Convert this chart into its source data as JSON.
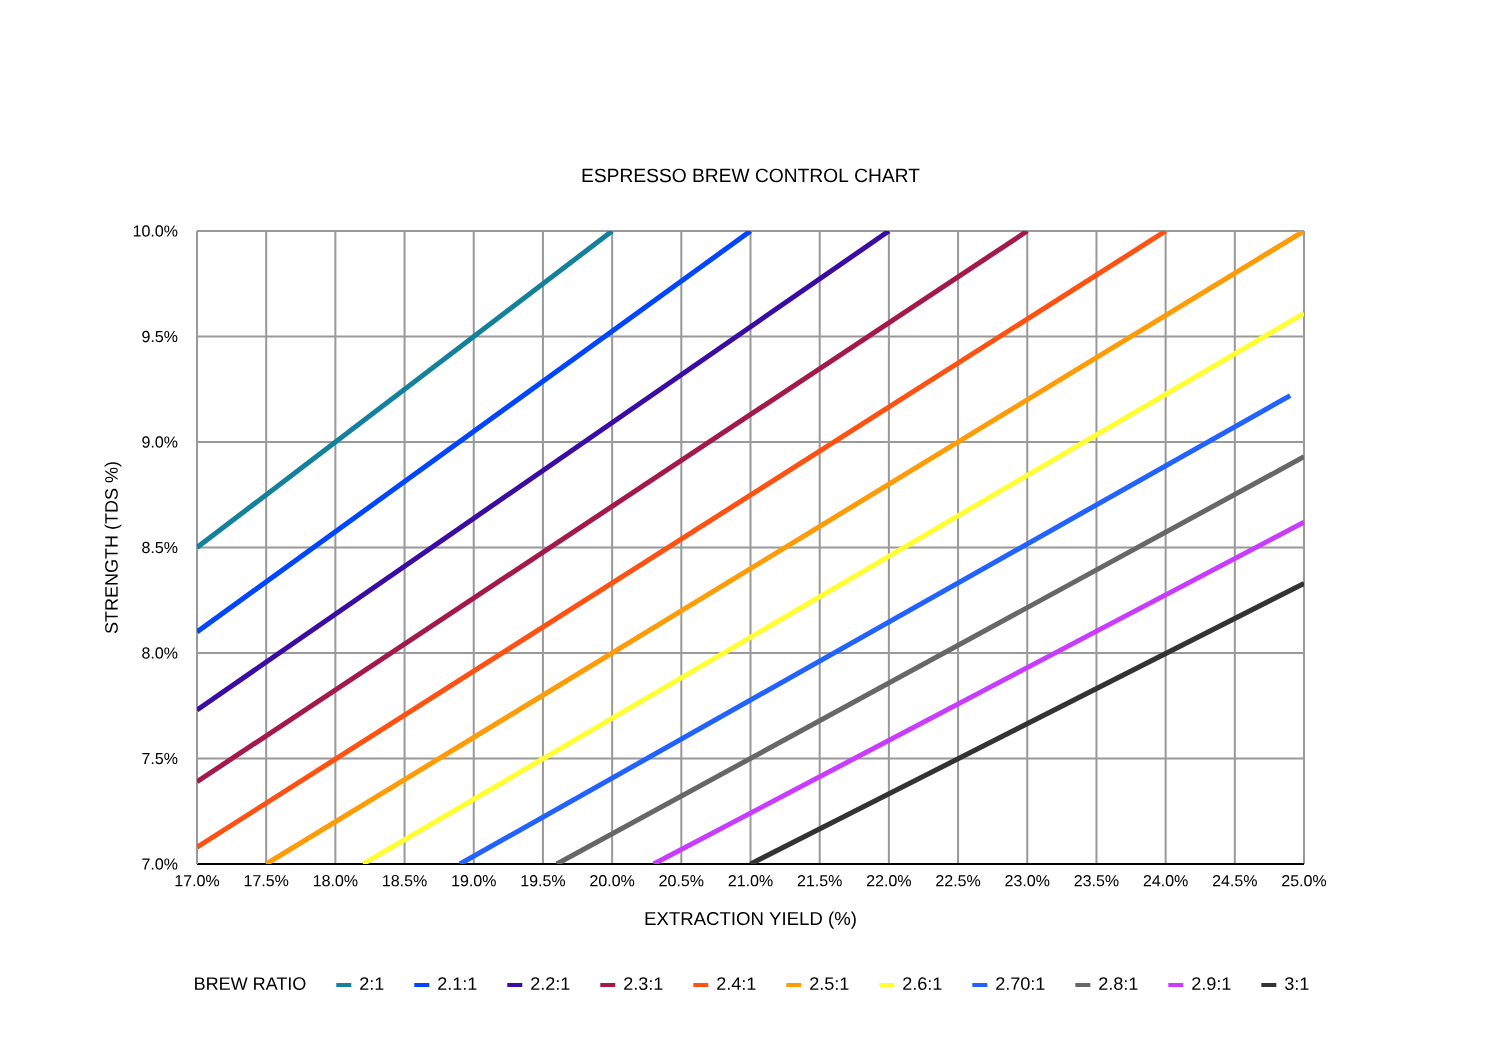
{
  "chart_data": {
    "type": "line",
    "title": "ESPRESSO BREW CONTROL CHART",
    "xlabel": "EXTRACTION YIELD (%)",
    "ylabel": "STRENGTH (TDS %)",
    "legend_title": "BREW RATIO",
    "xlim": [
      17.0,
      25.0
    ],
    "ylim": [
      7.0,
      10.0
    ],
    "xticks": [
      {
        "value": 17.0,
        "label": "17.0%"
      },
      {
        "value": 17.5,
        "label": "17.5%"
      },
      {
        "value": 18.0,
        "label": "18.0%"
      },
      {
        "value": 18.5,
        "label": "18.5%"
      },
      {
        "value": 19.0,
        "label": "19.0%"
      },
      {
        "value": 19.5,
        "label": "19.5%"
      },
      {
        "value": 20.0,
        "label": "20.0%"
      },
      {
        "value": 20.5,
        "label": "20.5%"
      },
      {
        "value": 21.0,
        "label": "21.0%"
      },
      {
        "value": 21.5,
        "label": "21.5%"
      },
      {
        "value": 22.0,
        "label": "22.0%"
      },
      {
        "value": 22.5,
        "label": "22.5%"
      },
      {
        "value": 23.0,
        "label": "23.0%"
      },
      {
        "value": 23.5,
        "label": "23.5%"
      },
      {
        "value": 24.0,
        "label": "24.0%"
      },
      {
        "value": 24.5,
        "label": "24.5%"
      },
      {
        "value": 25.0,
        "label": "25.0%"
      }
    ],
    "yticks": [
      {
        "value": 7.0,
        "label": "7.0%"
      },
      {
        "value": 7.5,
        "label": "7.5%"
      },
      {
        "value": 8.0,
        "label": "8.0%"
      },
      {
        "value": 8.5,
        "label": "8.5%"
      },
      {
        "value": 9.0,
        "label": "9.0%"
      },
      {
        "value": 9.5,
        "label": "9.5%"
      },
      {
        "value": 10.0,
        "label": "10.0%"
      }
    ],
    "grid": true,
    "legend": "bottom",
    "series": [
      {
        "name": "2:1",
        "color": "#13809c",
        "x": [
          17.0,
          20.0
        ],
        "values": [
          8.5,
          10.0
        ]
      },
      {
        "name": "2.1:1",
        "color": "#0046ff",
        "x": [
          17.0,
          21.0
        ],
        "values": [
          8.1,
          10.0
        ]
      },
      {
        "name": "2.2:1",
        "color": "#3a0ca3",
        "x": [
          17.0,
          22.0
        ],
        "values": [
          7.73,
          10.0
        ]
      },
      {
        "name": "2.3:1",
        "color": "#a3194b",
        "x": [
          17.0,
          23.0
        ],
        "values": [
          7.39,
          10.0
        ]
      },
      {
        "name": "2.4:1",
        "color": "#ff5212",
        "x": [
          17.0,
          24.0
        ],
        "values": [
          7.08,
          10.0
        ]
      },
      {
        "name": "2.5:1",
        "color": "#ff9b05",
        "x": [
          17.5,
          25.0
        ],
        "values": [
          7.0,
          10.0
        ]
      },
      {
        "name": "2.6:1",
        "color": "#ffff33",
        "x": [
          18.2,
          25.0
        ],
        "values": [
          7.0,
          9.61
        ]
      },
      {
        "name": "2.70:1",
        "color": "#2262ff",
        "x": [
          18.9,
          24.9
        ],
        "values": [
          7.0,
          9.22
        ]
      },
      {
        "name": "2.8:1",
        "color": "#676767",
        "x": [
          19.6,
          25.0
        ],
        "values": [
          7.0,
          8.93
        ]
      },
      {
        "name": "2.9:1",
        "color": "#c93cff",
        "x": [
          20.3,
          25.0
        ],
        "values": [
          7.0,
          8.62
        ]
      },
      {
        "name": "3:1",
        "color": "#333333",
        "x": [
          21.0,
          25.0
        ],
        "values": [
          7.0,
          8.33
        ]
      }
    ]
  }
}
